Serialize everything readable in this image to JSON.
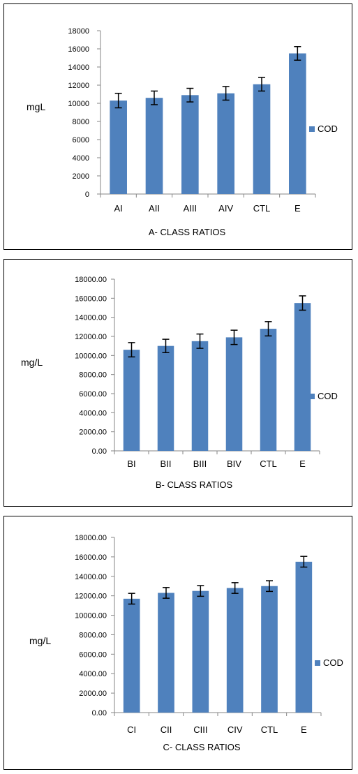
{
  "chart_data": [
    {
      "type": "bar",
      "categories": [
        "AI",
        "AII",
        "AIII",
        "AIV",
        "CTL",
        "E"
      ],
      "series": [
        {
          "name": "COD",
          "color": "#4f81bd",
          "values": [
            10300,
            10600,
            10900,
            11100,
            12100,
            15500
          ],
          "error": [
            800,
            750,
            750,
            750,
            750,
            750
          ]
        }
      ],
      "xlabel": "A- CLASS RATIOS",
      "ylabel": "mgL",
      "ylim": [
        0,
        18000
      ],
      "yticks": [
        0,
        2000,
        4000,
        6000,
        8000,
        10000,
        12000,
        14000,
        16000,
        18000
      ],
      "ytick_labels": [
        "0",
        "2000",
        "4000",
        "6000",
        "8000",
        "10000",
        "12000",
        "14000",
        "16000",
        "18000"
      ],
      "legend": [
        "COD"
      ],
      "legend_position": "right",
      "grid": false
    },
    {
      "type": "bar",
      "categories": [
        "BI",
        "BII",
        "BIII",
        "BIV",
        "CTL",
        "E"
      ],
      "series": [
        {
          "name": "COD",
          "color": "#4f81bd",
          "values": [
            10600,
            11000,
            11500,
            11900,
            12800,
            15500
          ],
          "error": [
            750,
            700,
            750,
            750,
            750,
            750
          ]
        }
      ],
      "xlabel": "B- CLASS  RATIOS",
      "ylabel": "mg/L",
      "ylim": [
        0,
        18000
      ],
      "yticks": [
        0,
        2000,
        4000,
        6000,
        8000,
        10000,
        12000,
        14000,
        16000,
        18000
      ],
      "ytick_labels": [
        "0.00",
        "2000.00",
        "4000.00",
        "6000.00",
        "8000.00",
        "10000.00",
        "12000.00",
        "14000.00",
        "16000.00",
        "18000.00"
      ],
      "legend": [
        "COD"
      ],
      "legend_position": "right",
      "grid": false
    },
    {
      "type": "bar",
      "categories": [
        "CI",
        "CII",
        "CIII",
        "CIV",
        "CTL",
        "E"
      ],
      "series": [
        {
          "name": "COD",
          "color": "#4f81bd",
          "values": [
            11700,
            12300,
            12500,
            12800,
            13000,
            15500
          ],
          "error": [
            550,
            550,
            550,
            550,
            550,
            550
          ]
        }
      ],
      "xlabel": "C- CLASS  RATIOS",
      "ylabel": "mg/L",
      "ylim": [
        0,
        18000
      ],
      "yticks": [
        0,
        2000,
        4000,
        6000,
        8000,
        10000,
        12000,
        14000,
        16000,
        18000
      ],
      "ytick_labels": [
        "0.00",
        "2000.00",
        "4000.00",
        "6000.00",
        "8000.00",
        "10000.00",
        "12000.00",
        "14000.00",
        "16000.00",
        "18000.00"
      ],
      "legend": [
        "COD"
      ],
      "legend_position": "right",
      "grid": false
    }
  ]
}
